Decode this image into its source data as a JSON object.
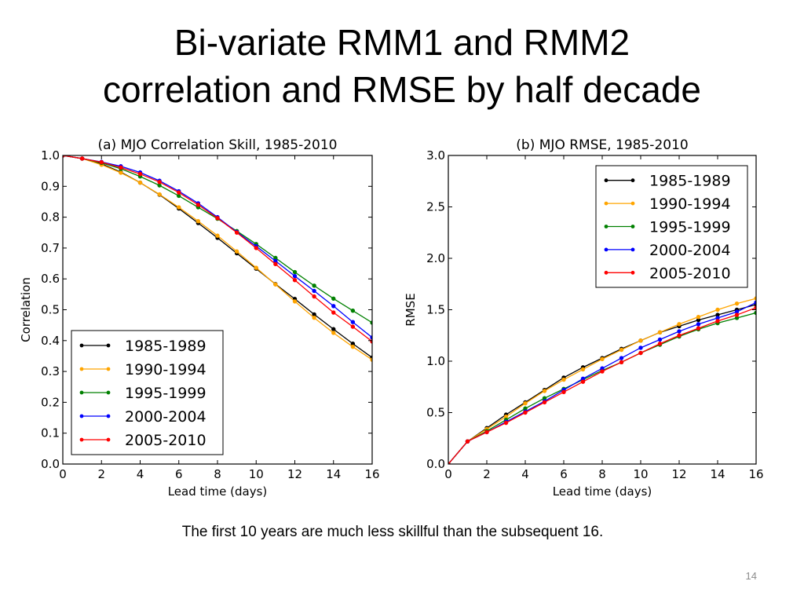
{
  "slide": {
    "title_line1": "Bi-variate RMM1 and RMM2",
    "title_line2": "correlation and RMSE by half decade",
    "caption": "The first 10 years are much less skillful than the subsequent 16.",
    "page_number": "14"
  },
  "chart_data": [
    {
      "type": "line",
      "title": "(a) MJO Correlation Skill, 1985-2010",
      "xlabel": "Lead time (days)",
      "ylabel": "Correlation",
      "xlim": [
        0,
        16
      ],
      "ylim": [
        0.0,
        1.0
      ],
      "xticks": [
        "0",
        "2",
        "4",
        "6",
        "8",
        "10",
        "12",
        "14",
        "16"
      ],
      "yticks": [
        "0.0",
        "0.1",
        "0.2",
        "0.3",
        "0.4",
        "0.5",
        "0.6",
        "0.7",
        "0.8",
        "0.9",
        "1.0"
      ],
      "legend_position": "lower-left",
      "grid": false,
      "x": [
        0,
        1,
        2,
        3,
        4,
        5,
        6,
        7,
        8,
        9,
        10,
        11,
        12,
        13,
        14,
        15,
        16
      ],
      "series": [
        {
          "name": "1985-1989",
          "color": "#000000",
          "values": [
            1.0,
            0.99,
            0.973,
            0.946,
            0.912,
            0.873,
            0.828,
            0.781,
            0.733,
            0.683,
            0.633,
            0.583,
            0.535,
            0.485,
            0.437,
            0.39,
            0.345
          ]
        },
        {
          "name": "1990-1994",
          "color": "#ffa500",
          "values": [
            1.0,
            0.99,
            0.97,
            0.944,
            0.912,
            0.874,
            0.832,
            0.787,
            0.74,
            0.689,
            0.636,
            0.582,
            0.527,
            0.474,
            0.425,
            0.38,
            0.338
          ]
        },
        {
          "name": "1995-1999",
          "color": "#008000",
          "values": [
            1.0,
            0.99,
            0.976,
            0.957,
            0.932,
            0.903,
            0.869,
            0.832,
            0.795,
            0.755,
            0.713,
            0.668,
            0.622,
            0.578,
            0.536,
            0.497,
            0.458
          ]
        },
        {
          "name": "2000-2004",
          "color": "#0000ff",
          "values": [
            1.0,
            0.99,
            0.979,
            0.965,
            0.945,
            0.918,
            0.884,
            0.845,
            0.8,
            0.752,
            0.706,
            0.658,
            0.609,
            0.561,
            0.512,
            0.46,
            0.41
          ]
        },
        {
          "name": "2005-2010",
          "color": "#ff0000",
          "values": [
            1.0,
            0.99,
            0.978,
            0.961,
            0.94,
            0.914,
            0.88,
            0.84,
            0.797,
            0.75,
            0.7,
            0.648,
            0.596,
            0.543,
            0.491,
            0.445,
            0.397
          ]
        }
      ]
    },
    {
      "type": "line",
      "title": "(b) MJO RMSE, 1985-2010",
      "xlabel": "Lead time (days)",
      "ylabel": "RMSE",
      "xlim": [
        0,
        16
      ],
      "ylim": [
        0.0,
        3.0
      ],
      "xticks": [
        "0",
        "2",
        "4",
        "6",
        "8",
        "10",
        "12",
        "14",
        "16"
      ],
      "yticks": [
        "0.0",
        "0.5",
        "1.0",
        "1.5",
        "2.0",
        "2.5",
        "3.0"
      ],
      "legend_position": "upper-right",
      "grid": false,
      "x": [
        0,
        1,
        2,
        3,
        4,
        5,
        6,
        7,
        8,
        9,
        10,
        11,
        12,
        13,
        14,
        15,
        16
      ],
      "series": [
        {
          "name": "1985-1989",
          "color": "#000000",
          "values": [
            0.0,
            0.22,
            0.35,
            0.48,
            0.6,
            0.72,
            0.84,
            0.94,
            1.03,
            1.12,
            1.2,
            1.28,
            1.34,
            1.4,
            1.45,
            1.5,
            1.55
          ]
        },
        {
          "name": "1990-1994",
          "color": "#ffa500",
          "values": [
            0.0,
            0.22,
            0.34,
            0.46,
            0.59,
            0.71,
            0.82,
            0.92,
            1.02,
            1.11,
            1.2,
            1.28,
            1.36,
            1.43,
            1.5,
            1.56,
            1.61
          ]
        },
        {
          "name": "1995-1999",
          "color": "#008000",
          "values": [
            0.0,
            0.22,
            0.32,
            0.43,
            0.54,
            0.64,
            0.73,
            0.82,
            0.91,
            0.99,
            1.08,
            1.16,
            1.24,
            1.31,
            1.37,
            1.42,
            1.47
          ]
        },
        {
          "name": "2000-2004",
          "color": "#0000ff",
          "values": [
            0.0,
            0.22,
            0.31,
            0.41,
            0.51,
            0.61,
            0.72,
            0.83,
            0.93,
            1.03,
            1.13,
            1.21,
            1.29,
            1.36,
            1.42,
            1.48,
            1.57
          ]
        },
        {
          "name": "2005-2010",
          "color": "#ff0000",
          "values": [
            0.0,
            0.22,
            0.31,
            0.4,
            0.5,
            0.6,
            0.7,
            0.8,
            0.9,
            0.99,
            1.08,
            1.17,
            1.25,
            1.32,
            1.39,
            1.45,
            1.52
          ]
        }
      ]
    }
  ]
}
